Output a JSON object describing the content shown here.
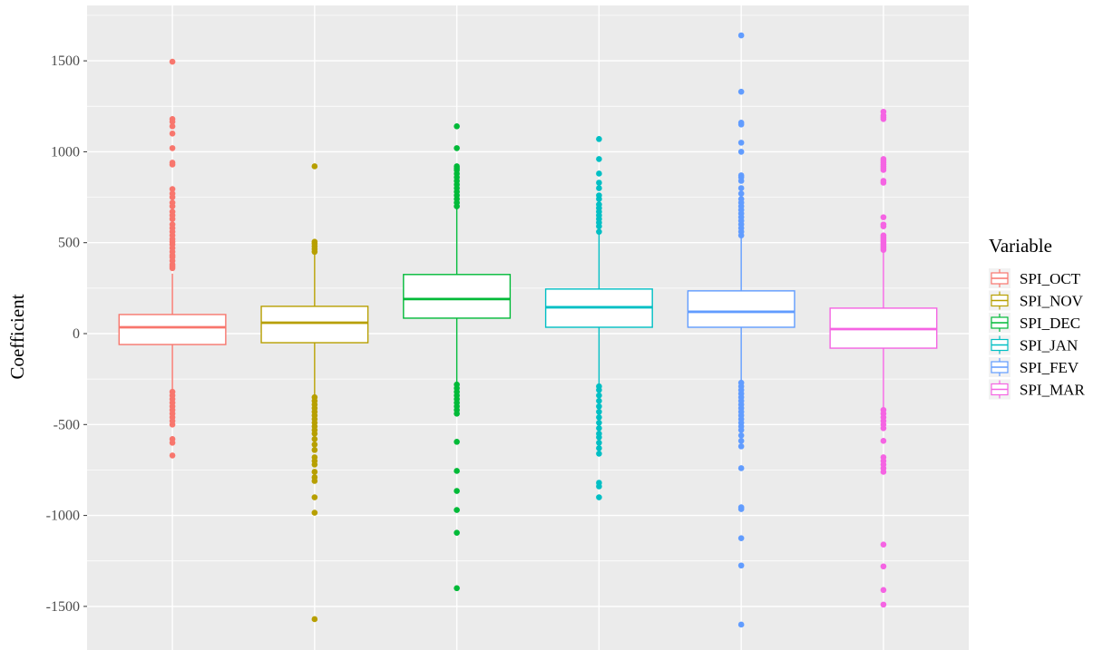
{
  "chart_data": {
    "type": "box",
    "title": "",
    "xlabel": "",
    "ylabel": "Coefficient",
    "ylim": [
      -1750,
      1800
    ],
    "yticks": [
      1500,
      1000,
      500,
      0,
      -500,
      -1000,
      -1500
    ],
    "ytick_labels": [
      "1500",
      "1000",
      "500",
      "0",
      "-500",
      "-1000",
      "-1500"
    ],
    "grid": true,
    "legend": {
      "title": "Variable",
      "position": "right"
    },
    "series": [
      {
        "name": "SPI_OCT",
        "color": "#F8766D",
        "q1": -60,
        "median": 35,
        "q3": 105,
        "whisker_low": -310,
        "whisker_high": 330,
        "outliers": [
          1495,
          1180,
          1165,
          1140,
          1100,
          1020,
          940,
          930,
          795,
          770,
          750,
          720,
          700,
          670,
          650,
          630,
          600,
          580,
          560,
          540,
          520,
          505,
          490,
          470,
          450,
          430,
          420,
          400,
          380,
          370,
          360,
          -320,
          -340,
          -360,
          -380,
          -400,
          -420,
          -440,
          -460,
          -480,
          -500,
          -580,
          -600,
          -670
        ]
      },
      {
        "name": "SPI_NOV",
        "color": "#B79F00",
        "q1": -50,
        "median": 60,
        "q3": 150,
        "whisker_low": -340,
        "whisker_high": 440,
        "outliers": [
          920,
          505,
          495,
          480,
          465,
          450,
          -350,
          -370,
          -390,
          -410,
          -430,
          -450,
          -470,
          -490,
          -510,
          -530,
          -550,
          -580,
          -610,
          -640,
          -680,
          -700,
          -720,
          -760,
          -790,
          -810,
          -900,
          -985,
          -1570
        ]
      },
      {
        "name": "SPI_DEC",
        "color": "#00BA38",
        "q1": 85,
        "median": 190,
        "q3": 325,
        "whisker_low": -270,
        "whisker_high": 690,
        "outliers": [
          1140,
          1020,
          920,
          910,
          900,
          880,
          860,
          840,
          820,
          800,
          780,
          760,
          740,
          720,
          700,
          -280,
          -300,
          -320,
          -340,
          -360,
          -380,
          -400,
          -420,
          -440,
          -595,
          -755,
          -865,
          -970,
          -1095,
          -1400
        ]
      },
      {
        "name": "SPI_JAN",
        "color": "#00BFC4",
        "q1": 35,
        "median": 145,
        "q3": 245,
        "whisker_low": -280,
        "whisker_high": 550,
        "outliers": [
          1070,
          960,
          880,
          830,
          800,
          760,
          740,
          710,
          690,
          670,
          650,
          630,
          610,
          590,
          560,
          -290,
          -310,
          -340,
          -370,
          -400,
          -430,
          -460,
          -490,
          -520,
          -550,
          -570,
          -600,
          -630,
          -660,
          -820,
          -840,
          -900
        ]
      },
      {
        "name": "SPI_FEV",
        "color": "#619CFF",
        "q1": 35,
        "median": 120,
        "q3": 235,
        "whisker_low": -260,
        "whisker_high": 530,
        "outliers": [
          1640,
          1330,
          1160,
          1150,
          1050,
          1000,
          870,
          860,
          840,
          800,
          770,
          740,
          720,
          700,
          680,
          660,
          640,
          620,
          600,
          580,
          560,
          540,
          -270,
          -290,
          -310,
          -330,
          -350,
          -370,
          -390,
          -410,
          -430,
          -450,
          -470,
          -490,
          -510,
          -530,
          -560,
          -590,
          -620,
          -740,
          -955,
          -965,
          -1125,
          -1275,
          -1600
        ]
      },
      {
        "name": "SPI_MAR",
        "color": "#F564E3",
        "q1": -80,
        "median": 25,
        "q3": 140,
        "whisker_low": -410,
        "whisker_high": 450,
        "outliers": [
          1220,
          1200,
          1190,
          1180,
          960,
          950,
          940,
          930,
          920,
          910,
          900,
          840,
          830,
          640,
          600,
          590,
          540,
          530,
          520,
          510,
          500,
          490,
          480,
          470,
          460,
          -420,
          -440,
          -460,
          -480,
          -500,
          -520,
          -590,
          -680,
          -700,
          -720,
          -740,
          -760,
          -1160,
          -1280,
          -1410,
          -1490
        ]
      }
    ]
  }
}
